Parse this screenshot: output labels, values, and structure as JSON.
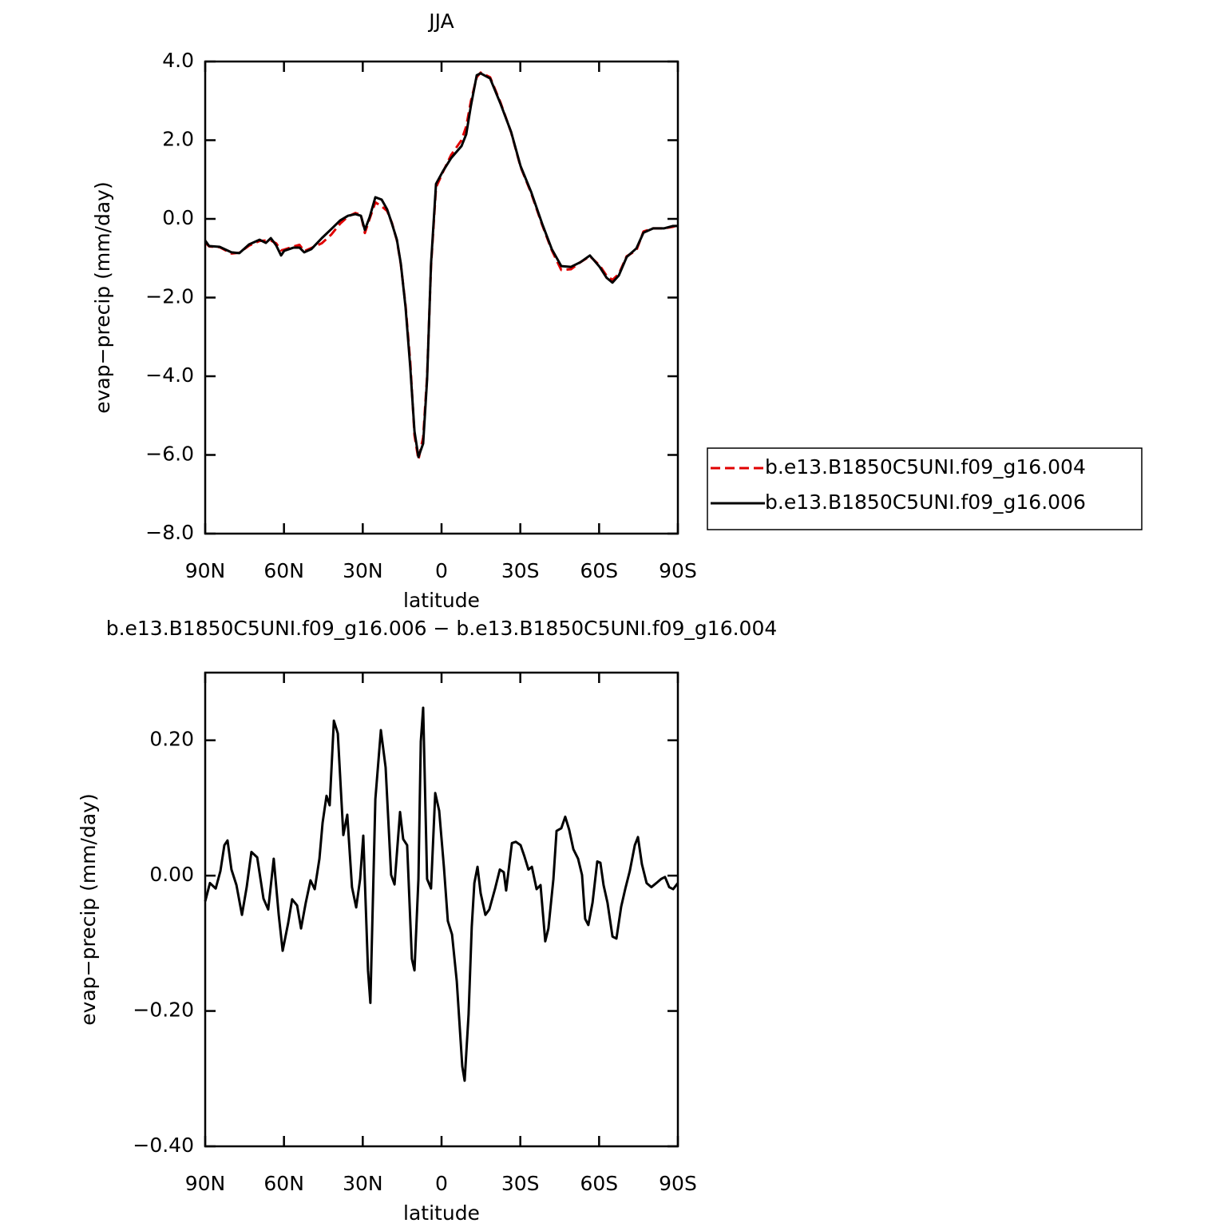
{
  "chart_data": [
    {
      "type": "line",
      "title": "JJA",
      "x_label": "latitude",
      "y_label": "evap−precip (mm/day)",
      "xlim": [
        90,
        -90
      ],
      "xticks": [
        {
          "value": 90,
          "label": "90N"
        },
        {
          "value": 60,
          "label": "60N"
        },
        {
          "value": 30,
          "label": "30N"
        },
        0,
        {
          "value": -30,
          "label": "30S"
        },
        {
          "value": -60,
          "label": "60S"
        },
        {
          "value": -90,
          "label": "90S"
        }
      ],
      "ylim": [
        -8,
        4
      ],
      "yticks": [
        {
          "value": -8,
          "label": "−8.0"
        },
        {
          "value": -6,
          "label": "−6.0"
        },
        {
          "value": -4,
          "label": "−4.0"
        },
        {
          "value": -2,
          "label": "−2.0"
        },
        {
          "value": 0,
          "label": "0.0"
        },
        {
          "value": 2,
          "label": "2.0"
        },
        {
          "value": 4,
          "label": "4.0"
        }
      ],
      "legend": "right",
      "x": [
        90,
        88.5,
        84.5,
        80,
        77,
        73.3,
        69.3,
        66.9,
        65,
        63,
        61.1,
        59.9,
        56.3,
        54.1,
        52.3,
        49.6,
        45.6,
        42,
        38.6,
        35.6,
        32.8,
        30.7,
        29.2,
        27.4,
        25.2,
        22.8,
        20.7,
        18.9,
        17,
        15.5,
        13.7,
        11.9,
        10.3,
        8.8,
        7,
        5.5,
        4,
        2.1,
        -0.6,
        -3.6,
        -7.6,
        -9.4,
        -11.2,
        -13.4,
        -14.9,
        -18.5,
        -22.5,
        -26.5,
        -30.1,
        -34.1,
        -38.3,
        -42,
        -45.6,
        -49.3,
        -52.9,
        -56.5,
        -60.2,
        -62.9,
        -65.1,
        -67.5,
        -70.5,
        -74.2,
        -76.9,
        -80.6,
        -84.8,
        -88.2,
        -90
      ],
      "series": [
        {
          "name": "b.e13.B1850C5UNI.f09_g16.004",
          "color": "#e00000",
          "linestyle": "dashed",
          "values": [
            -0.6,
            -0.7,
            -0.72,
            -0.88,
            -0.86,
            -0.68,
            -0.56,
            -0.55,
            -0.55,
            -0.62,
            -0.8,
            -0.78,
            -0.7,
            -0.66,
            -0.82,
            -0.74,
            -0.62,
            -0.4,
            -0.12,
            0.06,
            0.15,
            0.1,
            -0.36,
            0.0,
            0.42,
            0.32,
            0.2,
            -0.1,
            -0.55,
            -1.16,
            -2.2,
            -3.65,
            -5.5,
            -6.12,
            -5.55,
            -4.0,
            -1.2,
            0.8,
            1.2,
            1.62,
            2.0,
            2.35,
            3.0,
            3.6,
            3.72,
            3.6,
            2.95,
            2.2,
            1.32,
            0.66,
            -0.15,
            -0.8,
            -1.3,
            -1.28,
            -1.1,
            -0.95,
            -1.18,
            -1.45,
            -1.55,
            -1.4,
            -0.95,
            -0.8,
            -0.32,
            -0.24,
            -0.24,
            -0.2,
            -0.16
          ]
        },
        {
          "name": "b.e13.B1850C5UNI.f09_g16.006",
          "color": "#000000",
          "linestyle": "solid",
          "values": [
            -0.55,
            -0.69,
            -0.71,
            -0.85,
            -0.87,
            -0.65,
            -0.53,
            -0.61,
            -0.49,
            -0.67,
            -0.93,
            -0.81,
            -0.73,
            -0.73,
            -0.85,
            -0.77,
            -0.49,
            -0.26,
            -0.04,
            0.08,
            0.12,
            0.08,
            -0.28,
            0.04,
            0.55,
            0.49,
            0.24,
            -0.12,
            -0.53,
            -1.14,
            -2.25,
            -3.78,
            -5.4,
            -6.05,
            -5.71,
            -4.08,
            -1.14,
            0.89,
            1.22,
            1.54,
            1.85,
            2.15,
            2.88,
            3.65,
            3.7,
            3.57,
            2.92,
            2.21,
            1.34,
            0.69,
            -0.12,
            -0.77,
            -1.2,
            -1.22,
            -1.1,
            -0.93,
            -1.22,
            -1.5,
            -1.62,
            -1.44,
            -0.97,
            -0.75,
            -0.35,
            -0.24,
            -0.24,
            -0.18,
            -0.18
          ]
        }
      ]
    },
    {
      "type": "line",
      "title": "b.e13.B1850C5UNI.f09_g16.006 − b.e13.B1850C5UNI.f09_g16.004",
      "x_label": "latitude",
      "y_label": "evap−precip (mm/day)",
      "xlim": [
        90,
        -90
      ],
      "xticks": [
        {
          "value": 90,
          "label": "90N"
        },
        {
          "value": 60,
          "label": "60N"
        },
        {
          "value": 30,
          "label": "30N"
        },
        0,
        {
          "value": -30,
          "label": "30S"
        },
        {
          "value": -60,
          "label": "60S"
        },
        {
          "value": -90,
          "label": "90S"
        }
      ],
      "ylim": [
        -0.4,
        0.3
      ],
      "yticks": [
        {
          "value": -0.4,
          "label": "−0.40"
        },
        {
          "value": -0.2,
          "label": "−0.20"
        },
        {
          "value": 0,
          "label": "0.00"
        },
        {
          "value": 0.2,
          "label": "0.20"
        }
      ],
      "color": "#000000",
      "x": [
        90,
        88.2,
        86,
        84.2,
        82.7,
        81.5,
        80,
        78.1,
        76,
        74.2,
        72.4,
        70.2,
        67.8,
        66,
        63.9,
        62,
        60.5,
        58.4,
        56.9,
        55,
        53.5,
        51.7,
        49.9,
        48.3,
        46.5,
        45.3,
        43.8,
        42.6,
        41,
        39.5,
        37.4,
        35.9,
        34.1,
        32.5,
        31,
        29.8,
        28,
        27.1,
        25.2,
        23.1,
        21.3,
        19.2,
        17.9,
        15.8,
        14.6,
        13.1,
        11.3,
        10.3,
        8.8,
        7.9,
        7,
        5.5,
        4,
        2.4,
        0.9,
        -0.9,
        -2.4,
        -4,
        -5.8,
        -7.9,
        -8.8,
        -10.3,
        -11.5,
        -12.5,
        -13.7,
        -14.9,
        -16.7,
        -18.2,
        -20.4,
        -22.2,
        -23.7,
        -24.6,
        -26.8,
        -28.3,
        -30.1,
        -31.6,
        -33.1,
        -34.4,
        -36.2,
        -37.7,
        -39.5,
        -40.7,
        -42.6,
        -43.8,
        -45.6,
        -47.1,
        -48.6,
        -50.2,
        -52,
        -53.5,
        -54.7,
        -55.9,
        -57.5,
        -59.3,
        -60.5,
        -61.7,
        -63.2,
        -65.1,
        -66.6,
        -68.4,
        -70,
        -71.7,
        -73.6,
        -74.8,
        -76.3,
        -78.1,
        -79.9,
        -81.8,
        -83.6,
        -85.1,
        -86.7,
        -88.2,
        -90
      ],
      "values": [
        -0.038,
        -0.011,
        -0.019,
        0.007,
        0.045,
        0.052,
        0.009,
        -0.014,
        -0.058,
        -0.017,
        0.035,
        0.027,
        -0.034,
        -0.05,
        0.025,
        -0.058,
        -0.111,
        -0.07,
        -0.035,
        -0.044,
        -0.078,
        -0.04,
        -0.007,
        -0.02,
        0.025,
        0.078,
        0.118,
        0.104,
        0.229,
        0.21,
        0.06,
        0.09,
        -0.017,
        -0.047,
        -0.005,
        0.059,
        -0.14,
        -0.188,
        0.113,
        0.215,
        0.16,
        0.001,
        -0.013,
        0.094,
        0.054,
        0.045,
        -0.123,
        -0.14,
        -0.005,
        0.198,
        0.248,
        -0.005,
        -0.019,
        0.122,
        0.096,
        0.013,
        -0.067,
        -0.087,
        -0.156,
        -0.282,
        -0.303,
        -0.205,
        -0.076,
        -0.011,
        0.013,
        -0.026,
        -0.058,
        -0.05,
        -0.019,
        0.009,
        0.005,
        -0.022,
        0.048,
        0.05,
        0.045,
        0.028,
        0.009,
        0.013,
        -0.02,
        -0.014,
        -0.097,
        -0.078,
        -0.005,
        0.066,
        0.07,
        0.087,
        0.068,
        0.039,
        0.025,
        0.001,
        -0.064,
        -0.073,
        -0.04,
        0.021,
        0.019,
        -0.014,
        -0.04,
        -0.09,
        -0.093,
        -0.046,
        -0.019,
        0.007,
        0.045,
        0.057,
        0.017,
        -0.011,
        -0.017,
        -0.011,
        -0.005,
        -0.002,
        -0.017,
        -0.02,
        -0.011
      ]
    }
  ]
}
